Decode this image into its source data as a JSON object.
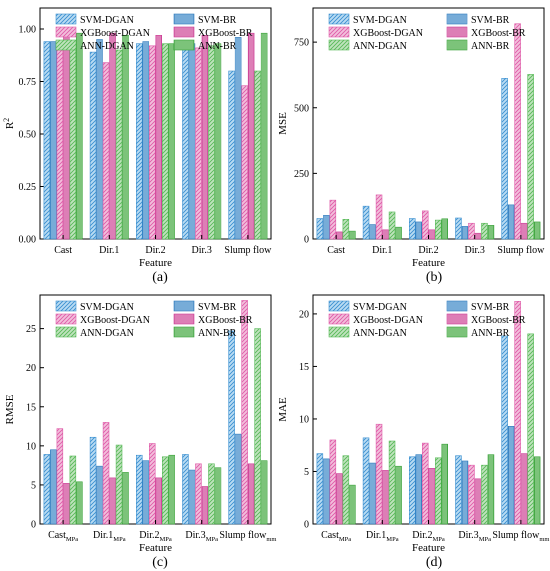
{
  "legend": {
    "entries": [
      "SVM-DGAN",
      "SVM-BR",
      "XGBoost-DGAN",
      "XGBoost-BR",
      "ANN-DGAN",
      "ANN-BR"
    ]
  },
  "colors": {
    "series": [
      "#3a8fd0",
      "#2f7bbd",
      "#df5aa8",
      "#cc3e95",
      "#57b957",
      "#3aa23a"
    ],
    "fills": [
      "#b9dcf3",
      "#a7cdea",
      "#f2bfdc",
      "#e9a8cd",
      "#bfe3bd",
      "#a9d9a5"
    ],
    "patterns": [
      "hatch",
      "vlines",
      "hatch",
      "vlines",
      "hatch",
      "vlines"
    ]
  },
  "chart_data": [
    {
      "type": "bar",
      "panel_label": "(a)",
      "xlabel": "Feature",
      "ylabel": "R",
      "ylabel_sup": "2",
      "ylim": [
        0,
        1.1
      ],
      "yticks": [
        "0.00",
        "0.25",
        "0.50",
        "0.75",
        "1.00"
      ],
      "ytick_values": [
        0,
        0.25,
        0.5,
        0.75,
        1.0
      ],
      "categories": [
        {
          "main": "Cast",
          "sub": ""
        },
        {
          "main": "Dir.1",
          "sub": ""
        },
        {
          "main": "Dir.2",
          "sub": ""
        },
        {
          "main": "Dir.3",
          "sub": ""
        },
        {
          "main": "Slump flow",
          "sub": ""
        }
      ],
      "series": [
        {
          "name": "SVM-DGAN",
          "values": [
            0.94,
            0.89,
            0.93,
            0.9,
            0.8
          ]
        },
        {
          "name": "SVM-BR",
          "values": [
            0.94,
            0.95,
            0.94,
            0.93,
            0.96
          ]
        },
        {
          "name": "XGBoost-DGAN",
          "values": [
            0.9,
            0.84,
            0.92,
            0.91,
            0.73
          ]
        },
        {
          "name": "XGBoost-BR",
          "values": [
            0.98,
            0.98,
            0.97,
            0.97,
            0.98
          ]
        },
        {
          "name": "ANN-DGAN",
          "values": [
            0.94,
            0.9,
            0.93,
            0.92,
            0.8
          ]
        },
        {
          "name": "ANN-BR",
          "values": [
            0.98,
            0.97,
            0.93,
            0.93,
            0.98
          ]
        }
      ]
    },
    {
      "type": "bar",
      "panel_label": "(b)",
      "xlabel": "Feature",
      "ylabel": "MSE",
      "ylabel_sup": "",
      "ylim": [
        0,
        880
      ],
      "yticks": [
        "0",
        "250",
        "500",
        "750"
      ],
      "ytick_values": [
        0,
        250,
        500,
        750
      ],
      "categories": [
        {
          "main": "Cast",
          "sub": ""
        },
        {
          "main": "Dir.1",
          "sub": ""
        },
        {
          "main": "Dir.2",
          "sub": ""
        },
        {
          "main": "Dir.3",
          "sub": ""
        },
        {
          "main": "Slump flow",
          "sub": ""
        }
      ],
      "series": [
        {
          "name": "SVM-DGAN",
          "values": [
            78,
            125,
            78,
            80,
            612
          ]
        },
        {
          "name": "SVM-BR",
          "values": [
            90,
            55,
            65,
            48,
            130
          ]
        },
        {
          "name": "XGBoost-DGAN",
          "values": [
            148,
            168,
            107,
            60,
            820
          ]
        },
        {
          "name": "XGBoost-BR",
          "values": [
            27,
            35,
            35,
            22,
            60
          ]
        },
        {
          "name": "ANN-DGAN",
          "values": [
            75,
            103,
            72,
            60,
            627
          ]
        },
        {
          "name": "ANN-BR",
          "values": [
            30,
            45,
            77,
            52,
            65
          ]
        }
      ]
    },
    {
      "type": "bar",
      "panel_label": "(c)",
      "xlabel": "Feature",
      "ylabel": "RMSE",
      "ylabel_sup": "",
      "ylim": [
        0,
        29.3
      ],
      "yticks": [
        "0",
        "5",
        "10",
        "15",
        "20",
        "25"
      ],
      "ytick_values": [
        0,
        5,
        10,
        15,
        20,
        25
      ],
      "categories": [
        {
          "main": "Cast",
          "sub": "MPa"
        },
        {
          "main": "Dir.1",
          "sub": "MPa"
        },
        {
          "main": "Dir.2",
          "sub": "MPa"
        },
        {
          "main": "Dir.3",
          "sub": "MPa"
        },
        {
          "main": "Slump flow",
          "sub": "mm"
        }
      ],
      "series": [
        {
          "name": "SVM-DGAN",
          "values": [
            8.9,
            11.1,
            8.8,
            8.9,
            24.7
          ]
        },
        {
          "name": "SVM-BR",
          "values": [
            9.5,
            7.4,
            8.1,
            6.9,
            11.5
          ]
        },
        {
          "name": "XGBoost-DGAN",
          "values": [
            12.2,
            13.0,
            10.3,
            7.7,
            28.6
          ]
        },
        {
          "name": "XGBoost-BR",
          "values": [
            5.2,
            5.9,
            5.9,
            4.8,
            7.7
          ]
        },
        {
          "name": "ANN-DGAN",
          "values": [
            8.7,
            10.1,
            8.6,
            7.7,
            25.0
          ]
        },
        {
          "name": "ANN-BR",
          "values": [
            5.4,
            6.6,
            8.8,
            7.2,
            8.1
          ]
        }
      ]
    },
    {
      "type": "bar",
      "panel_label": "(d)",
      "xlabel": "Feature",
      "ylabel": "MAE",
      "ylabel_sup": "",
      "ylim": [
        0,
        21.8
      ],
      "yticks": [
        "0",
        "5",
        "10",
        "15",
        "20"
      ],
      "ytick_values": [
        0,
        5,
        10,
        15,
        20
      ],
      "categories": [
        {
          "main": "Cast",
          "sub": "MPa"
        },
        {
          "main": "Dir.1",
          "sub": "MPa"
        },
        {
          "main": "Dir.2",
          "sub": "MPa"
        },
        {
          "main": "Dir.3",
          "sub": "MPa"
        },
        {
          "main": "Slump flow",
          "sub": "mm"
        }
      ],
      "series": [
        {
          "name": "SVM-DGAN",
          "values": [
            6.7,
            8.2,
            6.4,
            6.5,
            17.9
          ]
        },
        {
          "name": "SVM-BR",
          "values": [
            6.2,
            5.8,
            6.6,
            6.0,
            9.3
          ]
        },
        {
          "name": "XGBoost-DGAN",
          "values": [
            8.0,
            9.5,
            7.7,
            5.6,
            21.2
          ]
        },
        {
          "name": "XGBoost-BR",
          "values": [
            4.8,
            5.1,
            5.3,
            4.3,
            6.7
          ]
        },
        {
          "name": "ANN-DGAN",
          "values": [
            6.5,
            7.9,
            6.3,
            5.6,
            18.1
          ]
        },
        {
          "name": "ANN-BR",
          "values": [
            3.7,
            5.5,
            7.6,
            6.6,
            6.4
          ]
        }
      ]
    }
  ]
}
